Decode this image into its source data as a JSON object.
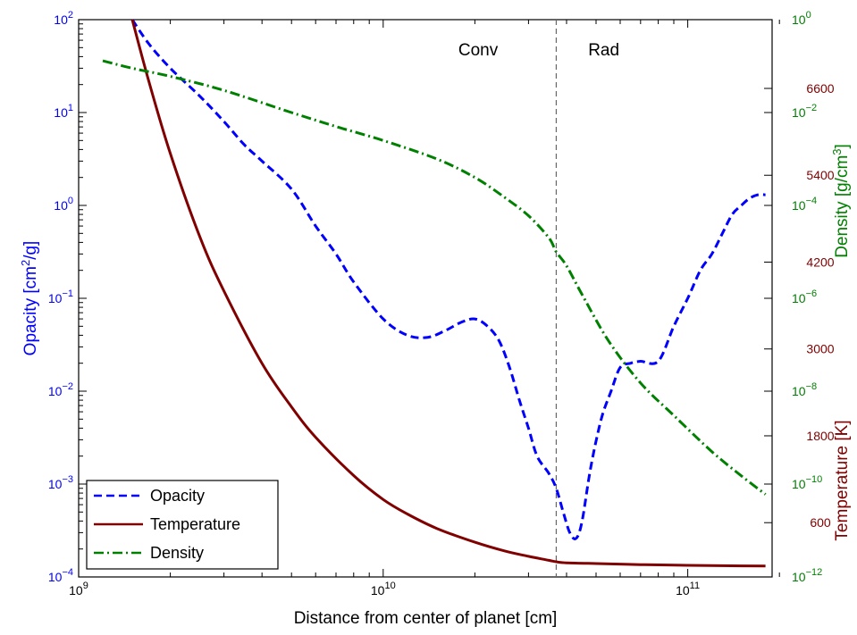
{
  "chart_data": {
    "type": "line",
    "x_axis": {
      "label": "Distance from center of planet [cm]",
      "scale": "log",
      "range": [
        1000000000,
        200000000000
      ],
      "ticks": [
        {
          "value": 1000000000,
          "base": "10",
          "exp": "9"
        },
        {
          "value": 10000000000,
          "base": "10",
          "exp": "10"
        },
        {
          "value": 100000000000,
          "base": "10",
          "exp": "11"
        }
      ]
    },
    "y_axes": {
      "opacity": {
        "label": "Opacity [cm2/g]",
        "label_parts": [
          "Opacity [cm",
          "2",
          "/g]"
        ],
        "scale": "log",
        "range": [
          0.0001,
          100
        ],
        "color": "#0000ff",
        "ticks": [
          {
            "value": 0.0001,
            "base": "10",
            "exp": "−4"
          },
          {
            "value": 0.001,
            "base": "10",
            "exp": "−3"
          },
          {
            "value": 0.01,
            "base": "10",
            "exp": "−2"
          },
          {
            "value": 0.1,
            "base": "10",
            "exp": "−1"
          },
          {
            "value": 1,
            "base": "10",
            "exp": "0"
          },
          {
            "value": 10,
            "base": "10",
            "exp": "1"
          },
          {
            "value": 100,
            "base": "10",
            "exp": "2"
          }
        ]
      },
      "density": {
        "label": "Density [g/cm3]",
        "label_parts": [
          "Density [g/cm",
          "3",
          "]"
        ],
        "scale": "log",
        "range": [
          1e-12,
          1
        ],
        "color": "#008000",
        "ticks": [
          {
            "value": 1e-12,
            "base": "10",
            "exp": "−12"
          },
          {
            "value": 1e-10,
            "base": "10",
            "exp": "−10"
          },
          {
            "value": 1e-08,
            "base": "10",
            "exp": "−8"
          },
          {
            "value": 1e-06,
            "base": "10",
            "exp": "−6"
          },
          {
            "value": 0.0001,
            "base": "10",
            "exp": "−4"
          },
          {
            "value": 0.01,
            "base": "10",
            "exp": "−2"
          },
          {
            "value": 1,
            "base": "10",
            "exp": "0"
          }
        ]
      },
      "temperature": {
        "label": "Temperature [K]",
        "scale": "linear",
        "range": [
          -150,
          7550
        ],
        "color": "#800000",
        "ticks": [
          {
            "value": 600,
            "text": "600"
          },
          {
            "value": 1800,
            "text": "1800"
          },
          {
            "value": 3000,
            "text": "3000"
          },
          {
            "value": 4200,
            "text": "4200"
          },
          {
            "value": 5400,
            "text": "5400"
          },
          {
            "value": 6600,
            "text": "6600"
          }
        ]
      }
    },
    "annotations": [
      {
        "text": "Conv",
        "x": 20500000000
      },
      {
        "text": "Rad",
        "x": 53000000000
      }
    ],
    "boundary": {
      "x": 37000000000,
      "style": "dashed",
      "color": "#666666"
    },
    "series": [
      {
        "name": "Opacity",
        "axis": "opacity",
        "color": "#0000ff",
        "style": "dashed",
        "x": [
          1500000000,
          1700000000,
          2000000000,
          2500000000,
          3000000000,
          3500000000,
          4000000000,
          5000000000,
          6000000000,
          7000000000,
          8000000000,
          10000000000,
          12000000000,
          14000000000,
          16000000000,
          18000000000,
          20000000000,
          22000000000,
          24000000000,
          26000000000,
          28000000000,
          30000000000,
          32000000000,
          35000000000,
          37000000000,
          39000000000,
          41000000000,
          43000000000,
          45000000000,
          48000000000,
          52000000000,
          56000000000,
          60000000000,
          65000000000,
          70000000000,
          80000000000,
          90000000000,
          100000000000,
          110000000000,
          120000000000,
          130000000000,
          140000000000,
          150000000000,
          160000000000,
          170000000000,
          180000000000
        ],
        "values": [
          100,
          55,
          30,
          15,
          8,
          4.5,
          3,
          1.5,
          0.6,
          0.3,
          0.15,
          0.06,
          0.04,
          0.038,
          0.045,
          0.055,
          0.06,
          0.05,
          0.035,
          0.018,
          0.008,
          0.004,
          0.002,
          0.0013,
          0.0009,
          0.0005,
          0.0003,
          0.00026,
          0.0004,
          0.0015,
          0.005,
          0.01,
          0.018,
          0.02,
          0.021,
          0.021,
          0.05,
          0.1,
          0.2,
          0.3,
          0.5,
          0.8,
          1.0,
          1.2,
          1.3,
          1.3
        ]
      },
      {
        "name": "Temperature",
        "axis": "temperature",
        "color": "#800000",
        "style": "solid",
        "x": [
          1500000000,
          1700000000,
          2000000000,
          2500000000,
          3000000000,
          4000000000,
          5000000000,
          6000000000,
          8000000000,
          10000000000,
          12000000000,
          15000000000,
          20000000000,
          25000000000,
          30000000000,
          35000000000,
          37000000000,
          40000000000,
          50000000000,
          70000000000,
          100000000000,
          150000000000,
          180000000000
        ],
        "values": [
          7550,
          6700,
          5700,
          4550,
          3800,
          2800,
          2200,
          1780,
          1250,
          920,
          720,
          520,
          330,
          210,
          135,
          80,
          60,
          45,
          35,
          20,
          10,
          3,
          0
        ]
      },
      {
        "name": "Density",
        "axis": "density",
        "color": "#008000",
        "style": "dashdot",
        "x": [
          1200000000,
          1500000000,
          2000000000,
          3000000000,
          5000000000,
          7000000000,
          10000000000,
          15000000000,
          20000000000,
          25000000000,
          30000000000,
          35000000000,
          37000000000,
          40000000000,
          45000000000,
          55000000000,
          70000000000,
          90000000000,
          120000000000,
          150000000000,
          180000000000
        ],
        "values": [
          0.13,
          0.09,
          0.06,
          0.03,
          0.01,
          0.005,
          0.0025,
          0.001,
          0.0004,
          0.00015,
          6e-05,
          2e-05,
          1e-05,
          5e-06,
          1.2e-06,
          1.2e-07,
          1.5e-08,
          3e-09,
          5e-10,
          1.5e-10,
          6e-11
        ]
      }
    ],
    "legend": {
      "position": "bottom-left",
      "entries": [
        "Opacity",
        "Temperature",
        "Density"
      ]
    },
    "grid": false
  }
}
